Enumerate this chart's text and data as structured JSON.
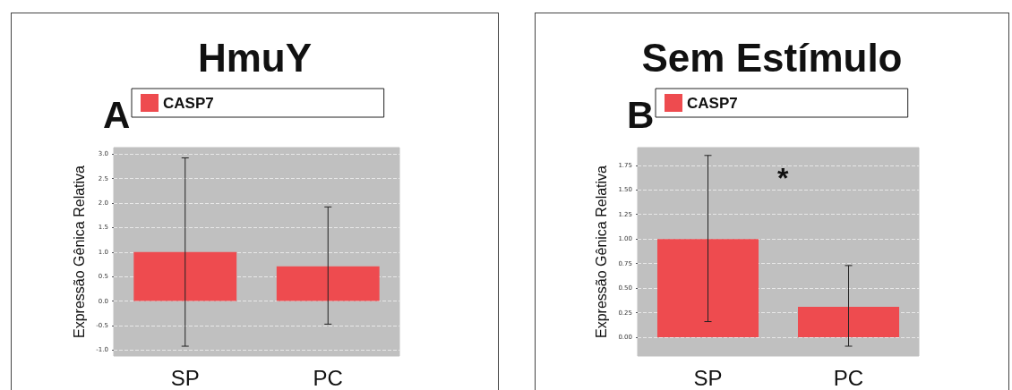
{
  "chart_data": [
    {
      "type": "bar",
      "title": "HmuY",
      "categories": [
        "SP",
        "PC"
      ],
      "series": [
        {
          "name": "CASP7",
          "color": "#ee4b4f",
          "values": [
            1.0,
            0.71
          ],
          "errors": [
            [
              -0.92,
              2.92
            ],
            [
              -0.47,
              1.92
            ]
          ]
        }
      ],
      "ylabel": "Expressão Gênica Relativa",
      "ylim": [
        -1.12,
        3.13
      ],
      "yticks": [
        {
          "value": -1,
          "label": "-1.0"
        },
        {
          "value": -0.5,
          "label": "-0.5"
        },
        {
          "value": 0,
          "label": "0.0"
        },
        {
          "value": 0.5,
          "label": "0.5"
        },
        {
          "value": 1,
          "label": "1.0"
        },
        {
          "value": 1.5,
          "label": "1.5"
        },
        {
          "value": 2,
          "label": "2.0"
        },
        {
          "value": 2.5,
          "label": "2.5"
        },
        {
          "value": 3,
          "label": "3.0"
        }
      ],
      "grid": "y",
      "legend": "top",
      "annotations": [
        "A"
      ]
    },
    {
      "type": "bar",
      "title": "Sem Estímulo",
      "categories": [
        "SP",
        "PC"
      ],
      "series": [
        {
          "name": "CASP7",
          "color": "#ee4b4f",
          "values": [
            1.0,
            0.31
          ],
          "errors": [
            [
              0.16,
              1.85
            ],
            [
              -0.09,
              0.73
            ]
          ]
        }
      ],
      "ylabel": "Expressão Gênica Relativa",
      "ylim": [
        -0.19,
        1.93
      ],
      "yticks": [
        {
          "value": 0,
          "label": "0.00"
        },
        {
          "value": 0.25,
          "label": "0.25"
        },
        {
          "value": 0.5,
          "label": "0.50"
        },
        {
          "value": 0.75,
          "label": "0.75"
        },
        {
          "value": 1,
          "label": "1.00"
        },
        {
          "value": 1.25,
          "label": "1.25"
        },
        {
          "value": 1.5,
          "label": "1.50"
        },
        {
          "value": 1.75,
          "label": "1.75"
        }
      ],
      "grid": "y",
      "legend": "top",
      "annotations": [
        "B",
        "*"
      ]
    }
  ]
}
